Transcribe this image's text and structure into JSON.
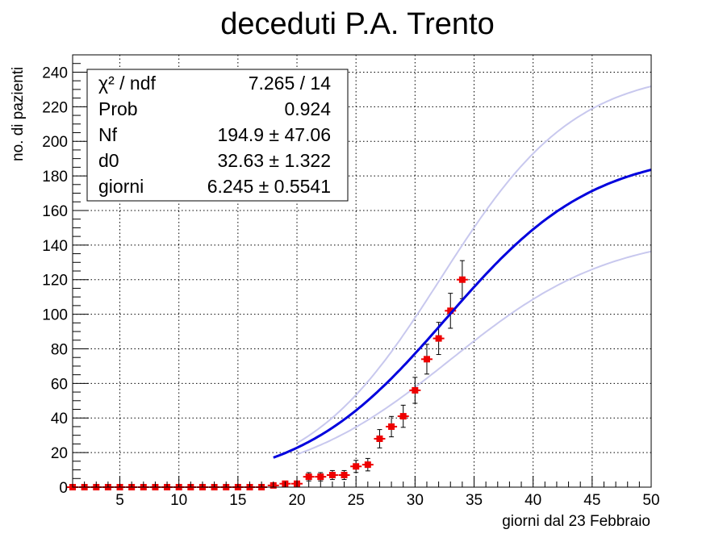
{
  "chart_data": {
    "type": "scatter",
    "title": "deceduti P.A. Trento",
    "xlabel": "giorni dal 23 Febbraio",
    "ylabel": "no. di pazienti",
    "xlim": [
      1,
      50
    ],
    "ylim": [
      0,
      250
    ],
    "x_ticks": [
      5,
      10,
      15,
      20,
      25,
      30,
      35,
      40,
      45,
      50
    ],
    "y_ticks": [
      0,
      20,
      40,
      60,
      80,
      100,
      120,
      140,
      160,
      180,
      200,
      220,
      240
    ],
    "grid": true,
    "data_color": "#ee0000",
    "fit_color": "#0000dd",
    "band_color": "#c8c8ee",
    "points": [
      {
        "x": 1,
        "y": 0,
        "err": 0
      },
      {
        "x": 2,
        "y": 0,
        "err": 0
      },
      {
        "x": 3,
        "y": 0,
        "err": 0
      },
      {
        "x": 4,
        "y": 0,
        "err": 0
      },
      {
        "x": 5,
        "y": 0,
        "err": 0
      },
      {
        "x": 6,
        "y": 0,
        "err": 0
      },
      {
        "x": 7,
        "y": 0,
        "err": 0
      },
      {
        "x": 8,
        "y": 0,
        "err": 0
      },
      {
        "x": 9,
        "y": 0,
        "err": 0
      },
      {
        "x": 10,
        "y": 0,
        "err": 0
      },
      {
        "x": 11,
        "y": 0,
        "err": 0
      },
      {
        "x": 12,
        "y": 0,
        "err": 0
      },
      {
        "x": 13,
        "y": 0,
        "err": 0
      },
      {
        "x": 14,
        "y": 0,
        "err": 0
      },
      {
        "x": 15,
        "y": 0,
        "err": 0
      },
      {
        "x": 16,
        "y": 0,
        "err": 0
      },
      {
        "x": 17,
        "y": 0,
        "err": 0
      },
      {
        "x": 18,
        "y": 1,
        "err": 1
      },
      {
        "x": 19,
        "y": 2,
        "err": 1.4
      },
      {
        "x": 20,
        "y": 2,
        "err": 1.4
      },
      {
        "x": 21,
        "y": 6,
        "err": 2.4
      },
      {
        "x": 22,
        "y": 6,
        "err": 2.4
      },
      {
        "x": 23,
        "y": 7,
        "err": 2.6
      },
      {
        "x": 24,
        "y": 7,
        "err": 2.6
      },
      {
        "x": 25,
        "y": 12,
        "err": 3.5
      },
      {
        "x": 26,
        "y": 13,
        "err": 3.6
      },
      {
        "x": 27,
        "y": 28,
        "err": 5.3
      },
      {
        "x": 28,
        "y": 35,
        "err": 5.9
      },
      {
        "x": 29,
        "y": 41,
        "err": 6.4
      },
      {
        "x": 30,
        "y": 56,
        "err": 7.5
      },
      {
        "x": 31,
        "y": 74,
        "err": 8.6
      },
      {
        "x": 32,
        "y": 86,
        "err": 9.3
      },
      {
        "x": 33,
        "y": 102,
        "err": 10.1
      },
      {
        "x": 34,
        "y": 120,
        "err": 11.0
      }
    ],
    "fit": {
      "Nf": 194.9,
      "d0": 32.63,
      "giorni": 6.245
    },
    "band_upper": {
      "Nf": 242,
      "d0": 32.2,
      "giorni": 5.7
    },
    "band_lower": {
      "Nf": 147.5,
      "d0": 33.0,
      "giorni": 6.8
    },
    "stats": [
      {
        "label": "χ² / ndf",
        "value": "7.265 / 14"
      },
      {
        "label": "Prob",
        "value": "0.924"
      },
      {
        "label": "Nf",
        "value": "194.9 ± 47.06"
      },
      {
        "label": "d0",
        "value": "32.63 ± 1.322"
      },
      {
        "label": "giorni",
        "value": "6.245 ± 0.5541"
      }
    ]
  }
}
